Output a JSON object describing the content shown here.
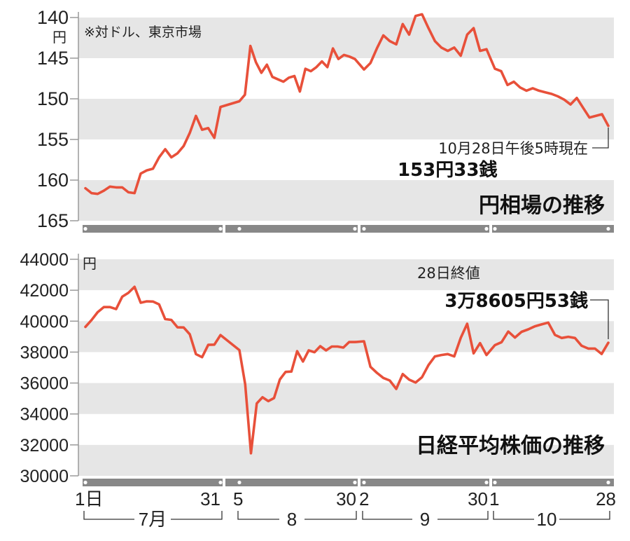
{
  "colors": {
    "line": "#e8503a",
    "band": "#e6e6e6",
    "axis": "#9a9a9a",
    "text": "#222222"
  },
  "top": {
    "note": "※対ドル、東京市場",
    "unit": "円",
    "title": "円相場の推移",
    "annotation": {
      "label": "10月28日午後5時現在",
      "value": "153円33銭"
    }
  },
  "bottom": {
    "unit": "円",
    "title": "日経平均株価の推移",
    "annotation": {
      "label": "28日終値",
      "value": "3万8605円53銭"
    }
  },
  "x_ticks": [
    "1日",
    "31",
    "5",
    "30",
    "2",
    "30",
    "1",
    "28"
  ],
  "months": [
    "7月",
    "8",
    "9",
    "10"
  ],
  "chart_data": [
    {
      "type": "line",
      "title": "円相場の推移",
      "ylabel": "円",
      "ylim": [
        140,
        165
      ],
      "y_inverted": true,
      "yticks": [
        140,
        145,
        150,
        155,
        160,
        165
      ],
      "grid": "alternating bands",
      "months": [
        "7月",
        "8",
        "9",
        "10"
      ],
      "month_days": [
        23,
        22,
        20,
        20
      ],
      "series": [
        {
          "values": [
            [
              161.0,
              161.6,
              161.7,
              161.3,
              160.8,
              160.9,
              160.9,
              161.5,
              161.6,
              159.2,
              158.8,
              158.6,
              157.2,
              156.2,
              157.2,
              156.7,
              155.8,
              154.2,
              152.1,
              153.8,
              153.6,
              154.8,
              151.0
            ],
            [
              150.3,
              149.5,
              143.5,
              145.5,
              146.8,
              145.8,
              147.3,
              147.6,
              147.9,
              147.4,
              147.2,
              149.1,
              146.3,
              146.6,
              146.1,
              145.4,
              146.1,
              143.8,
              145.1,
              144.6,
              144.8,
              145.1
            ],
            [
              146.4,
              145.6,
              143.8,
              142.2,
              142.9,
              143.3,
              140.8,
              142.1,
              139.8,
              139.6,
              141.3,
              142.9,
              143.7,
              144.1,
              143.7,
              144.7,
              142.1,
              141.3,
              144.1,
              143.9
            ],
            [
              146.3,
              146.6,
              148.3,
              147.9,
              148.6,
              149.0,
              148.7,
              149.0,
              149.2,
              149.4,
              149.7,
              150.1,
              150.7,
              149.9,
              151.1,
              152.3,
              152.1,
              151.9,
              153.33
            ]
          ]
        }
      ]
    },
    {
      "type": "line",
      "title": "日経平均株価の推移",
      "ylabel": "円",
      "ylim": [
        30000,
        44000
      ],
      "yticks": [
        30000,
        32000,
        34000,
        36000,
        38000,
        40000,
        42000,
        44000
      ],
      "grid": "alternating bands",
      "months": [
        "7月",
        "8",
        "9",
        "10"
      ],
      "month_days": [
        23,
        22,
        20,
        20
      ],
      "series": [
        {
          "values": [
            [
              39630,
              40070,
              40580,
              40910,
              40910,
              40780,
              41580,
              41830,
              42220,
              41190,
              41280,
              41270,
              41080,
              40130,
              40080,
              39600,
              39590,
              39150,
              37870,
              37670,
              38470,
              38480,
              39100
            ],
            [
              38130,
              35910,
              31460,
              34680,
              35080,
              34830,
              35030,
              36230,
              36720,
              36740,
              38060,
              37390,
              38110,
              37990,
              38380,
              38110,
              38360,
              38360,
              38290,
              38650,
              38650
            ],
            [
              38700,
              37050,
              36660,
              36330,
              36160,
              35620,
              36580,
              36220,
              36030,
              36380,
              37160,
              37720,
              37810,
              37870,
              37720,
              38920,
              39830,
              37920,
              38580,
              37810
            ],
            [
              38450,
              38640,
              39330,
              38940,
              39310,
              39470,
              39670,
              39790,
              39910,
              39110,
              38910,
              38990,
              38910,
              38410,
              38230,
              38230,
              37880,
              38605.53
            ]
          ]
        }
      ]
    }
  ]
}
